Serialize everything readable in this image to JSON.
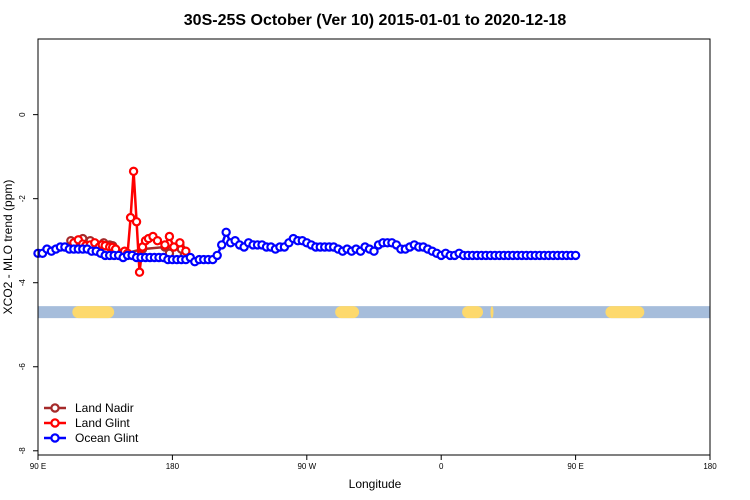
{
  "chart_data": {
    "type": "line",
    "title": "30S-25S October (Ver 10)   2015-01-01 to 2020-12-18",
    "xlabel": "Longitude",
    "ylabel": "XCO2 - MLO trend (ppm)",
    "xlim": [
      90,
      450
    ],
    "ylim": [
      -8.1,
      1.8
    ],
    "x_ticks": [
      {
        "value": 90,
        "label": "90 E"
      },
      {
        "value": 180,
        "label": "180"
      },
      {
        "value": 270,
        "label": "90 W"
      },
      {
        "value": 360,
        "label": "0"
      },
      {
        "value": 450,
        "label": "90 E"
      },
      {
        "value": 540,
        "label": "180"
      }
    ],
    "y_ticks": [
      {
        "value": 0,
        "label": "0"
      },
      {
        "value": -2,
        "label": "-2"
      },
      {
        "value": -4,
        "label": "-4"
      },
      {
        "value": -6,
        "label": "-6"
      },
      {
        "value": -8,
        "label": "-8"
      }
    ],
    "land_band": {
      "y": -4.7,
      "ocean_color": "#a6bddb",
      "land_color": "#fdd96d",
      "land_segments": [
        [
          113,
          141
        ],
        [
          289,
          305
        ],
        [
          374,
          388
        ],
        [
          393,
          395
        ],
        [
          470,
          496
        ]
      ]
    },
    "legend_position": "bottom-left",
    "series": [
      {
        "name": "Land Nadir",
        "color": "#a52a2a",
        "x": [
          112,
          116,
          120,
          125,
          130,
          134,
          138,
          140,
          149,
          160,
          175,
          178,
          185,
          186,
          188
        ],
        "y": [
          -3.0,
          -3.05,
          -2.95,
          -3.0,
          -3.1,
          -3.05,
          -3.1,
          -3.12,
          -3.3,
          -3.2,
          -3.15,
          -3.3,
          -3.1,
          -3.2,
          -3.35
        ]
      },
      {
        "name": "Land Glint",
        "color": "#ff0000",
        "x": [
          114,
          117,
          120,
          122,
          125,
          128,
          131,
          133,
          135,
          138,
          140,
          142,
          148,
          150,
          152,
          154,
          156,
          158,
          160,
          162,
          164,
          167,
          170,
          175,
          178,
          181,
          185,
          189
        ],
        "y": [
          -3.05,
          -2.98,
          -3.08,
          -3.12,
          -3.1,
          -3.05,
          -3.15,
          -3.1,
          -3.12,
          -3.15,
          -3.16,
          -3.2,
          -3.25,
          -3.3,
          -2.45,
          -1.35,
          -2.55,
          -3.75,
          -3.15,
          -3.0,
          -2.95,
          -2.9,
          -3.0,
          -3.1,
          -2.9,
          -3.15,
          -3.05,
          -3.25
        ]
      },
      {
        "name": "Ocean Glint",
        "color": "#0000ff",
        "x": [
          90,
          93,
          96,
          99,
          102,
          105,
          108,
          111,
          114,
          117,
          120,
          123,
          126,
          129,
          132,
          135,
          138,
          141,
          144,
          147,
          150,
          153,
          156,
          159,
          162,
          165,
          168,
          171,
          174,
          177,
          180,
          183,
          186,
          189,
          192,
          195,
          198,
          201,
          204,
          207,
          210,
          213,
          216,
          219,
          222,
          225,
          228,
          231,
          234,
          237,
          240,
          243,
          246,
          249,
          252,
          255,
          258,
          261,
          264,
          267,
          270,
          273,
          276,
          279,
          282,
          285,
          288,
          291,
          294,
          297,
          300,
          303,
          306,
          309,
          312,
          315,
          318,
          321,
          324,
          327,
          330,
          333,
          336,
          339,
          342,
          345,
          348,
          351,
          354,
          357,
          360,
          363,
          366,
          369,
          372,
          375,
          378,
          381,
          384,
          387,
          390,
          393,
          396,
          399,
          402,
          405,
          408,
          411,
          414,
          417,
          420,
          423,
          426,
          429,
          432,
          435,
          438,
          441,
          444,
          447,
          450
        ],
        "y": [
          -3.3,
          -3.3,
          -3.2,
          -3.25,
          -3.2,
          -3.15,
          -3.15,
          -3.2,
          -3.2,
          -3.2,
          -3.2,
          -3.2,
          -3.25,
          -3.25,
          -3.3,
          -3.35,
          -3.35,
          -3.35,
          -3.35,
          -3.4,
          -3.35,
          -3.35,
          -3.4,
          -3.4,
          -3.4,
          -3.4,
          -3.4,
          -3.4,
          -3.4,
          -3.45,
          -3.45,
          -3.45,
          -3.45,
          -3.45,
          -3.4,
          -3.5,
          -3.45,
          -3.45,
          -3.45,
          -3.45,
          -3.35,
          -3.1,
          -2.8,
          -3.05,
          -3.0,
          -3.1,
          -3.15,
          -3.05,
          -3.1,
          -3.1,
          -3.1,
          -3.15,
          -3.15,
          -3.2,
          -3.15,
          -3.15,
          -3.05,
          -2.95,
          -3.0,
          -3.0,
          -3.05,
          -3.1,
          -3.15,
          -3.15,
          -3.15,
          -3.15,
          -3.15,
          -3.2,
          -3.25,
          -3.2,
          -3.25,
          -3.2,
          -3.25,
          -3.15,
          -3.2,
          -3.25,
          -3.1,
          -3.05,
          -3.05,
          -3.05,
          -3.1,
          -3.2,
          -3.2,
          -3.15,
          -3.1,
          -3.15,
          -3.15,
          -3.2,
          -3.25,
          -3.3,
          -3.35,
          -3.3,
          -3.35,
          -3.35,
          -3.3,
          -3.35,
          -3.35,
          -3.35,
          -3.35,
          -3.35,
          -3.35,
          -3.35,
          -3.35,
          -3.35,
          -3.35,
          -3.35,
          -3.35,
          -3.35,
          -3.35,
          -3.35,
          -3.35,
          -3.35,
          -3.35,
          -3.35,
          -3.35,
          -3.35,
          -3.35,
          -3.35,
          -3.35,
          -3.35,
          -3.35
        ]
      }
    ]
  }
}
